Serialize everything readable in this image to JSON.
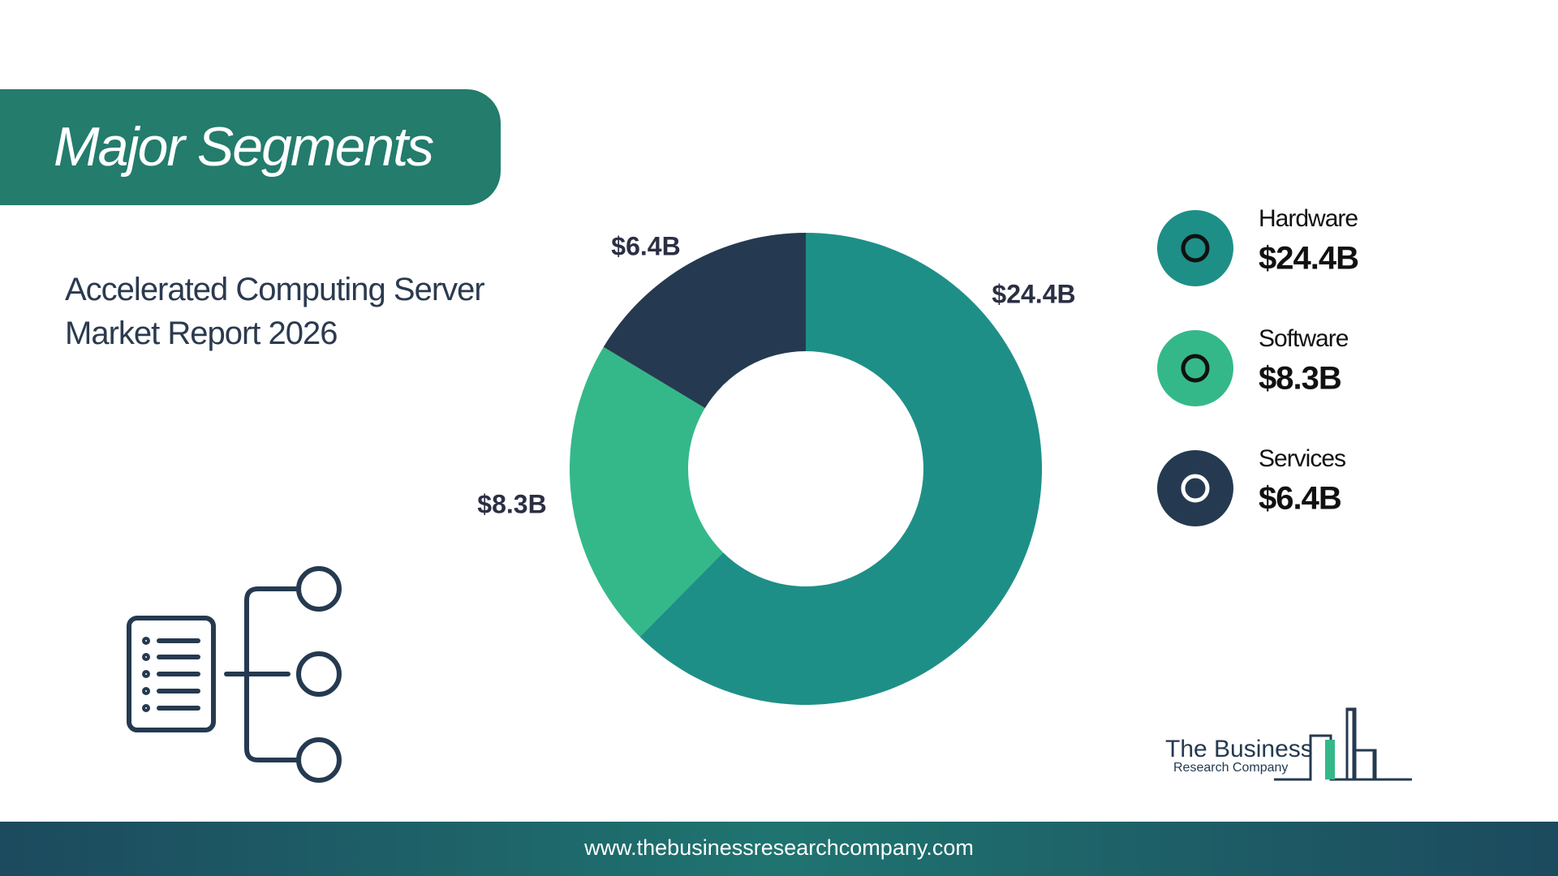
{
  "header": {
    "title": "Major Segments"
  },
  "chart_data": {
    "type": "donut",
    "title": "Accelerated Computing Server Market Report 2026",
    "categories": [
      "Hardware",
      "Software",
      "Services"
    ],
    "values": [
      24.4,
      8.3,
      6.4
    ],
    "value_labels": [
      "$24.4B",
      "$8.3B",
      "$6.4B"
    ],
    "colors": [
      "#1e8f87",
      "#35b889",
      "#253a50"
    ]
  },
  "logo": {
    "line1": "The Business",
    "line2": "Research Company"
  },
  "footer": {
    "url": "www.thebusinessresearchcompany.com"
  }
}
